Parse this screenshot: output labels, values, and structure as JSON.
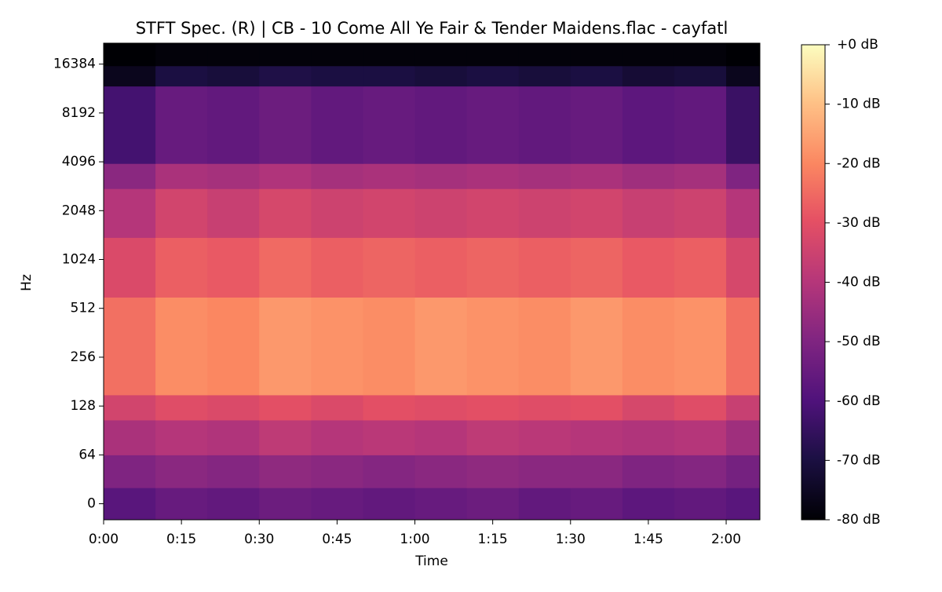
{
  "chart_data": {
    "type": "spectrogram",
    "title": "STFT Spec. (R) | CB - 10 Come All Ye Fair & Tender Maidens.flac - cayfatl",
    "x_label": "Time",
    "y_label": "Hz",
    "colormap": "magma",
    "xlim": [
      0,
      126.5
    ],
    "xticks": [
      {
        "value": 0,
        "label": "0:00"
      },
      {
        "value": 15,
        "label": "0:15"
      },
      {
        "value": 30,
        "label": "0:30"
      },
      {
        "value": 45,
        "label": "0:45"
      },
      {
        "value": 60,
        "label": "1:00"
      },
      {
        "value": 75,
        "label": "1:15"
      },
      {
        "value": 90,
        "label": "1:30"
      },
      {
        "value": 105,
        "label": "1:45"
      },
      {
        "value": 120,
        "label": "2:00"
      }
    ],
    "y_scale": "symlog",
    "y_linthresh": 64,
    "ylim": [
      -21,
      22050
    ],
    "yticks": [
      0,
      64,
      128,
      256,
      512,
      1024,
      2048,
      4096,
      8192,
      16384
    ],
    "clim": [
      -80,
      0
    ],
    "cticks": [
      {
        "value": 0,
        "label": "+0 dB"
      },
      {
        "value": -10,
        "label": "-10 dB"
      },
      {
        "value": -20,
        "label": "-20 dB"
      },
      {
        "value": -30,
        "label": "-30 dB"
      },
      {
        "value": -40,
        "label": "-40 dB"
      },
      {
        "value": -50,
        "label": "-50 dB"
      },
      {
        "value": -60,
        "label": "-60 dB"
      },
      {
        "value": -70,
        "label": "-70 dB"
      },
      {
        "value": -80,
        "label": "-80 dB"
      }
    ],
    "time_edges": [
      0,
      10,
      20,
      30,
      40,
      50,
      60,
      70,
      80,
      90,
      100,
      110,
      120,
      126.5
    ],
    "freq_edges": [
      -21,
      21,
      64,
      105,
      150,
      600,
      1400,
      2800,
      4000,
      12000,
      16000,
      22050
    ],
    "db": [
      [
        -58,
        -55,
        -56,
        -54,
        -55,
        -56,
        -55,
        -54,
        -56,
        -55,
        -57,
        -56,
        -58
      ],
      [
        -50,
        -48,
        -49,
        -47,
        -48,
        -49,
        -48,
        -47,
        -48,
        -48,
        -50,
        -49,
        -52
      ],
      [
        -42,
        -40,
        -41,
        -38,
        -40,
        -39,
        -40,
        -38,
        -39,
        -40,
        -41,
        -40,
        -44
      ],
      [
        -34,
        -31,
        -32,
        -30,
        -32,
        -30,
        -31,
        -30,
        -31,
        -30,
        -33,
        -31,
        -36
      ],
      [
        -24,
        -19,
        -20,
        -17,
        -18,
        -19,
        -17,
        -18,
        -19,
        -17,
        -19,
        -18,
        -24
      ],
      [
        -32,
        -27,
        -28,
        -25,
        -27,
        -26,
        -27,
        -26,
        -27,
        -26,
        -28,
        -27,
        -33
      ],
      [
        -40,
        -34,
        -36,
        -33,
        -35,
        -34,
        -35,
        -34,
        -35,
        -34,
        -36,
        -35,
        -40
      ],
      [
        -48,
        -42,
        -43,
        -41,
        -43,
        -42,
        -43,
        -42,
        -43,
        -42,
        -44,
        -43,
        -50
      ],
      [
        -62,
        -55,
        -56,
        -54,
        -56,
        -55,
        -56,
        -55,
        -56,
        -55,
        -57,
        -56,
        -64
      ],
      [
        -76,
        -70,
        -71,
        -69,
        -70,
        -70,
        -71,
        -70,
        -71,
        -70,
        -72,
        -71,
        -76
      ],
      [
        -80,
        -79,
        -79,
        -79,
        -79,
        -79,
        -79,
        -79,
        -79,
        -79,
        -79,
        -79,
        -80
      ]
    ]
  }
}
